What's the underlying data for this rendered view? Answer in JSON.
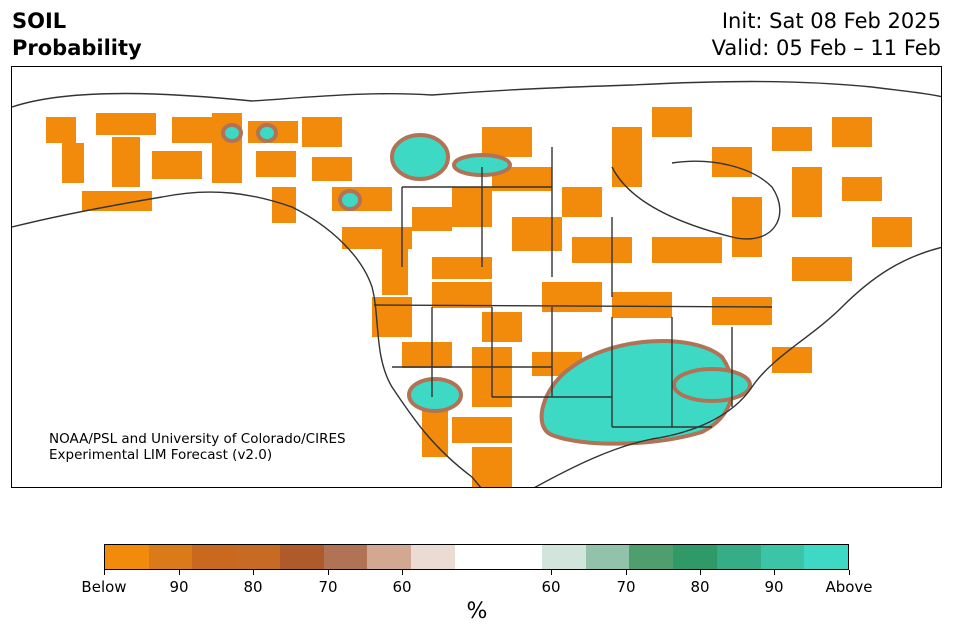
{
  "header": {
    "variable": "SOIL",
    "product": "Probability",
    "init_text": "Init: Sat 08 Feb 2025",
    "valid_text": "Valid: 05 Feb – 11 Feb"
  },
  "credit": {
    "line1": "NOAA/PSL and University of Colorado/CIRES",
    "line2": "Experimental LIM Forecast (v2.0)"
  },
  "colorbar": {
    "colors": [
      "#f28a0c",
      "#db7a18",
      "#c9681f",
      "#c66a24",
      "#ae5a2a",
      "#b07356",
      "#d3a893",
      "#eadbd3",
      "#ffffff",
      "#ffffff",
      "#d2e5dc",
      "#93c2aa",
      "#4e9e6e",
      "#2f9968",
      "#35ae88",
      "#3bc4a6",
      "#3dd9c4"
    ],
    "tick_labels": [
      "Below",
      "90",
      "80",
      "70",
      "60",
      "60",
      "70",
      "80",
      "90",
      "Above"
    ],
    "unit_label": "%"
  },
  "map": {
    "below_color": "#f28a0c",
    "above_color": "#3dd9c4",
    "coast_color": "#333333"
  }
}
